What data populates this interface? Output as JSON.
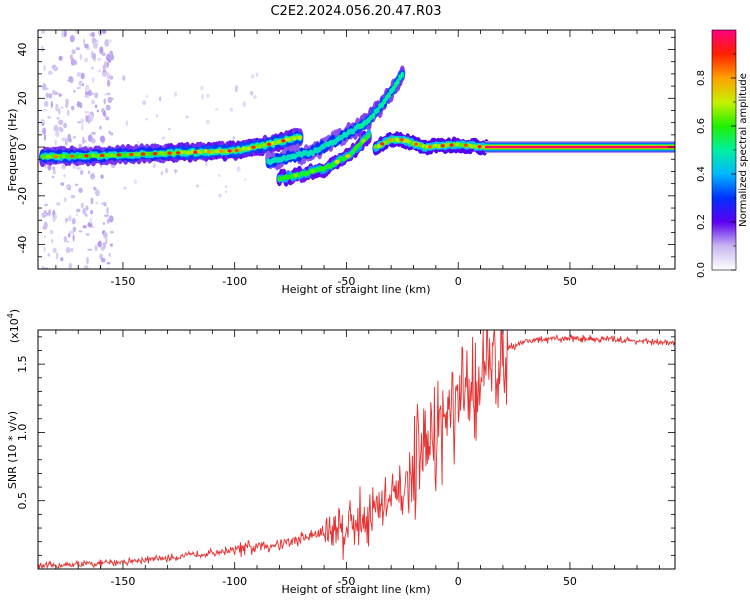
{
  "figure_title": "C2E2.2024.056.20.47.R03",
  "colorbar": {
    "label": "Normalized spectral amplitude",
    "ticks": [
      "0.0",
      "0.2",
      "0.4",
      "0.6",
      "0.8"
    ],
    "tick_values": [
      0.0,
      0.2,
      0.4,
      0.6,
      0.8
    ]
  },
  "chart_data": [
    {
      "type": "heatmap",
      "title": "",
      "xlabel": "Height of straight line (km)",
      "ylabel": "Frequency (Hz)",
      "xlim": [
        -188,
        97
      ],
      "ylim": [
        -50,
        48
      ],
      "xticks": [
        -150,
        -100,
        -50,
        0,
        50
      ],
      "xtick_labels": [
        "-150",
        "-100",
        "-50",
        "0",
        "50"
      ],
      "yticks": [
        -40,
        -20,
        0,
        20,
        40
      ],
      "ytick_labels": [
        "-40",
        "-20",
        "0",
        "20",
        "40"
      ],
      "ridge": [
        {
          "x": -185,
          "y": -4
        },
        {
          "x": -160,
          "y": -3.5
        },
        {
          "x": -130,
          "y": -2.5
        },
        {
          "x": -100,
          "y": -1.5
        },
        {
          "x": -85,
          "y": 1
        },
        {
          "x": -72,
          "y": 4
        }
      ],
      "branch_upper": [
        {
          "x": -85,
          "y": -6
        },
        {
          "x": -65,
          "y": -2
        },
        {
          "x": -50,
          "y": 5
        },
        {
          "x": -40,
          "y": 11
        },
        {
          "x": -32,
          "y": 20
        },
        {
          "x": -25,
          "y": 30
        }
      ],
      "branch_lower": [
        {
          "x": -80,
          "y": -13
        },
        {
          "x": -60,
          "y": -9
        },
        {
          "x": -48,
          "y": -3
        },
        {
          "x": -40,
          "y": 5
        }
      ],
      "post_ridge": [
        {
          "x": -37,
          "y": 0
        },
        {
          "x": -30,
          "y": 3
        },
        {
          "x": -25,
          "y": 3
        },
        {
          "x": -15,
          "y": 0
        },
        {
          "x": 0,
          "y": 1
        },
        {
          "x": 12,
          "y": 0
        }
      ],
      "constant_line": {
        "x_start": 12,
        "x_end": 97,
        "y": 0,
        "amplitude": 1.0
      }
    },
    {
      "type": "line",
      "title": "",
      "xlabel": "Height of straight line (km)",
      "ylabel": "SNR (10 * v/v)",
      "y_multiplier": "(x10",
      "y_multiplier_exp": "4",
      "xlim": [
        -188,
        97
      ],
      "ylim": [
        0,
        1.75
      ],
      "xticks": [
        -150,
        -100,
        -50,
        0,
        50
      ],
      "xtick_labels": [
        "-150",
        "-100",
        "-50",
        "0",
        "50"
      ],
      "yticks": [
        0.5,
        1.0,
        1.5
      ],
      "ytick_labels": [
        "0.5",
        "1.0",
        "1.5"
      ],
      "series": [
        {
          "name": "SNR",
          "color": "#e83030",
          "trend_x": [
            -188,
            -160,
            -130,
            -110,
            -90,
            -75,
            -60,
            -45,
            -35,
            -25,
            -18,
            -10,
            -3,
            5,
            12,
            20,
            30,
            50,
            70,
            97
          ],
          "trend_y": [
            0.02,
            0.04,
            0.08,
            0.12,
            0.16,
            0.2,
            0.27,
            0.35,
            0.45,
            0.55,
            0.78,
            1.0,
            1.12,
            1.3,
            1.45,
            1.6,
            1.67,
            1.69,
            1.68,
            1.65
          ]
        }
      ]
    }
  ]
}
